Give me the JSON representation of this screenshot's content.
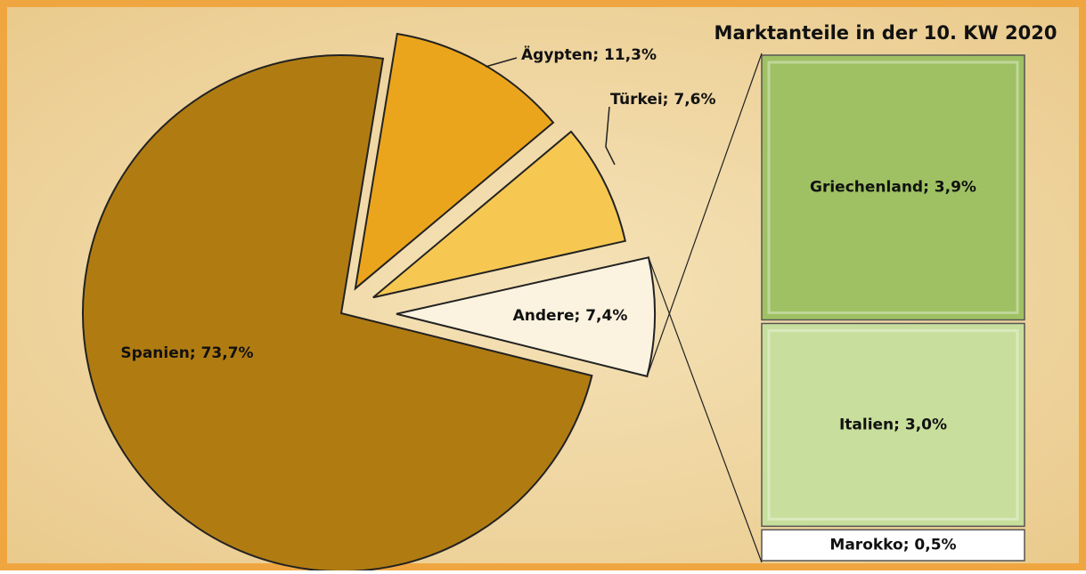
{
  "chart_data": [
    {
      "type": "pie",
      "values": [
        73.7,
        11.3,
        7.6,
        7.4
      ],
      "value_labels": [
        "Spanien; 73,7%",
        "Ägypten; 11,3%",
        "Türkei; 7,6%",
        "Andere; 7,4%"
      ],
      "colors": [
        "#b07c12",
        "#eba51c",
        "#f6c852",
        "#fbf3df"
      ]
    },
    {
      "type": "bar",
      "stacked": true,
      "title": "Marktanteile in der 10. KW 2020",
      "series": [
        {
          "name": "Griechenland",
          "color": "#9fc163",
          "values": [
            3.9
          ],
          "value_labels": [
            "Griechenland; 3,9%"
          ]
        },
        {
          "name": "Italien",
          "color": "#c8de9c",
          "values": [
            3.0
          ],
          "value_labels": [
            "Italien; 3,0%"
          ]
        },
        {
          "name": "Marokko",
          "color": "#ffffff",
          "values": [
            0.5
          ],
          "value_labels": [
            "Marokko; 0,5%"
          ]
        }
      ]
    }
  ]
}
